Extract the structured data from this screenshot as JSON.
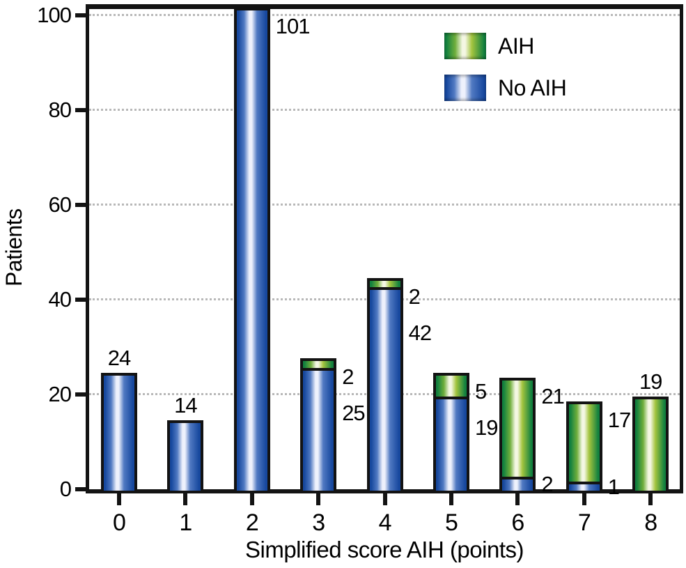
{
  "figure": {
    "background": "#ffffff",
    "frame_color": "#131313",
    "gridline_color": "#b8b8b8"
  },
  "colors": {
    "aih_dark": "#13813f",
    "aih_mid": "#6fae3c",
    "aih_yellow": "#a3c43e",
    "aih_light": "#f4f7e3",
    "no_aih_dark": "#17489e",
    "no_aih_mid": "#5079c2",
    "no_aih_light": "#eef1fc",
    "outline": "#131313",
    "text": "#000000"
  },
  "chart_data": {
    "type": "bar",
    "stacked": true,
    "title": "",
    "xlabel": "Simplified score AIH (points)",
    "ylabel": "Patients",
    "categories": [
      "0",
      "1",
      "2",
      "3",
      "4",
      "5",
      "6",
      "7",
      "8"
    ],
    "series": [
      {
        "name": "AIH",
        "color_key": "green",
        "values": [
          0,
          0,
          0,
          2,
          2,
          5,
          21,
          17,
          19
        ]
      },
      {
        "name": "No AIH",
        "color_key": "blue",
        "values": [
          24,
          14,
          101,
          25,
          42,
          19,
          2,
          1,
          0
        ]
      }
    ],
    "y_ticks": [
      0,
      20,
      40,
      60,
      80,
      100
    ],
    "ylim": [
      0,
      103
    ],
    "grid": {
      "horizontal": true,
      "style": "dotted",
      "at": [
        20,
        40,
        60,
        80,
        100
      ]
    },
    "legend_position": "top-right",
    "value_labels": [
      {
        "category": "0",
        "entries": [
          {
            "series": "No AIH",
            "value": 24,
            "placement": "above"
          }
        ]
      },
      {
        "category": "1",
        "entries": [
          {
            "series": "No AIH",
            "value": 14,
            "placement": "above"
          }
        ]
      },
      {
        "category": "2",
        "entries": [
          {
            "series": "No AIH",
            "value": 101,
            "placement": "right-of-top"
          }
        ]
      },
      {
        "category": "3",
        "entries": [
          {
            "series": "AIH",
            "value": 2,
            "placement": "right-of-top"
          },
          {
            "series": "No AIH",
            "value": 25,
            "placement": "right-below"
          }
        ]
      },
      {
        "category": "4",
        "entries": [
          {
            "series": "AIH",
            "value": 2,
            "placement": "right-of-top"
          },
          {
            "series": "No AIH",
            "value": 42,
            "placement": "right-below"
          }
        ]
      },
      {
        "category": "5",
        "entries": [
          {
            "series": "AIH",
            "value": 5,
            "placement": "right-of-top"
          },
          {
            "series": "No AIH",
            "value": 19,
            "placement": "right-below"
          }
        ]
      },
      {
        "category": "6",
        "entries": [
          {
            "series": "AIH",
            "value": 21,
            "placement": "right-of-top"
          },
          {
            "series": "No AIH",
            "value": 2,
            "placement": "right-of-segment"
          }
        ]
      },
      {
        "category": "7",
        "entries": [
          {
            "series": "AIH",
            "value": 17,
            "placement": "right-of-top"
          },
          {
            "series": "No AIH",
            "value": 1,
            "placement": "right-of-segment"
          }
        ]
      },
      {
        "category": "8",
        "entries": [
          {
            "series": "AIH",
            "value": 19,
            "placement": "above"
          }
        ]
      }
    ]
  }
}
